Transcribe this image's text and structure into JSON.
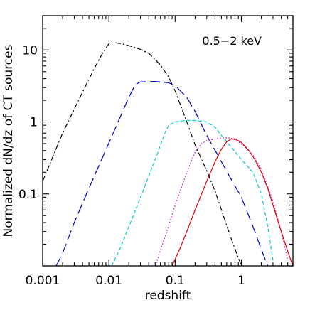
{
  "chart_data": {
    "type": "line",
    "title": "",
    "xlabel": "redshift",
    "ylabel": "Normalized dN/dz of CT sources",
    "annotation": "0.5−2 keV",
    "xscale": "log",
    "yscale": "log",
    "xlim": [
      0.001,
      6
    ],
    "ylim": [
      0.01,
      30
    ],
    "x_ticks": [
      {
        "value": 0.001,
        "label": "0.001"
      },
      {
        "value": 0.01,
        "label": "0.01"
      },
      {
        "value": 0.1,
        "label": "0.1"
      },
      {
        "value": 1,
        "label": "1"
      }
    ],
    "y_ticks": [
      {
        "value": 0.1,
        "label": "0.1"
      },
      {
        "value": 1,
        "label": "1"
      },
      {
        "value": 10,
        "label": "10"
      }
    ],
    "grid": false,
    "series": [
      {
        "color": "#000000",
        "style": "dash-dot",
        "x": [
          0.001,
          0.002,
          0.004,
          0.006,
          0.008,
          0.01,
          0.012,
          0.015,
          0.02,
          0.03,
          0.04,
          0.06,
          0.08,
          0.1,
          0.15,
          0.2,
          0.3,
          0.4,
          0.5,
          0.7,
          1.0
        ],
        "y": [
          0.15,
          0.7,
          2.6,
          5.5,
          9.0,
          12.2,
          12.6,
          12.3,
          11.5,
          10.2,
          9.0,
          6.2,
          4.2,
          2.7,
          1.0,
          0.48,
          0.21,
          0.11,
          0.06,
          0.024,
          0.01
        ]
      },
      {
        "color": "#0000cc",
        "style": "long-dash",
        "x": [
          0.0016,
          0.002,
          0.003,
          0.005,
          0.008,
          0.012,
          0.02,
          0.025,
          0.03,
          0.05,
          0.08,
          0.1,
          0.15,
          0.2,
          0.3,
          0.5,
          0.7,
          1.0,
          1.5,
          2.0,
          2.5
        ],
        "y": [
          0.01,
          0.015,
          0.04,
          0.12,
          0.32,
          0.75,
          2.2,
          3.3,
          3.6,
          3.65,
          3.5,
          3.2,
          2.2,
          1.4,
          0.65,
          0.28,
          0.16,
          0.09,
          0.035,
          0.017,
          0.01
        ]
      },
      {
        "color": "#00cccc",
        "style": "short-dash",
        "x": [
          0.011,
          0.015,
          0.02,
          0.03,
          0.05,
          0.07,
          0.08,
          0.1,
          0.15,
          0.2,
          0.3,
          0.4,
          0.5,
          0.7,
          1.0,
          1.5,
          2.0,
          2.5,
          3.0
        ],
        "y": [
          0.01,
          0.018,
          0.035,
          0.09,
          0.3,
          0.7,
          0.9,
          1.0,
          1.05,
          1.05,
          1.0,
          0.85,
          0.65,
          0.45,
          0.3,
          0.2,
          0.1,
          0.035,
          0.012
        ]
      },
      {
        "color": "#cc00cc",
        "style": "dotted",
        "x": [
          0.05,
          0.07,
          0.1,
          0.15,
          0.2,
          0.25,
          0.3,
          0.5,
          0.7,
          1.0,
          1.5,
          2.0,
          3.0,
          4.0,
          5.0
        ],
        "y": [
          0.01,
          0.025,
          0.07,
          0.2,
          0.38,
          0.5,
          0.55,
          0.6,
          0.6,
          0.5,
          0.35,
          0.22,
          0.08,
          0.03,
          0.012
        ]
      },
      {
        "color": "#dd0000",
        "style": "solid",
        "x": [
          0.09,
          0.12,
          0.15,
          0.2,
          0.3,
          0.4,
          0.5,
          0.6,
          0.7,
          0.8,
          1.0,
          1.3,
          1.6,
          2.0,
          2.5,
          3.0,
          4.0,
          5.0,
          6.0
        ],
        "y": [
          0.01,
          0.018,
          0.03,
          0.06,
          0.15,
          0.28,
          0.42,
          0.53,
          0.58,
          0.58,
          0.52,
          0.4,
          0.3,
          0.2,
          0.12,
          0.07,
          0.03,
          0.016,
          0.01
        ]
      }
    ]
  }
}
